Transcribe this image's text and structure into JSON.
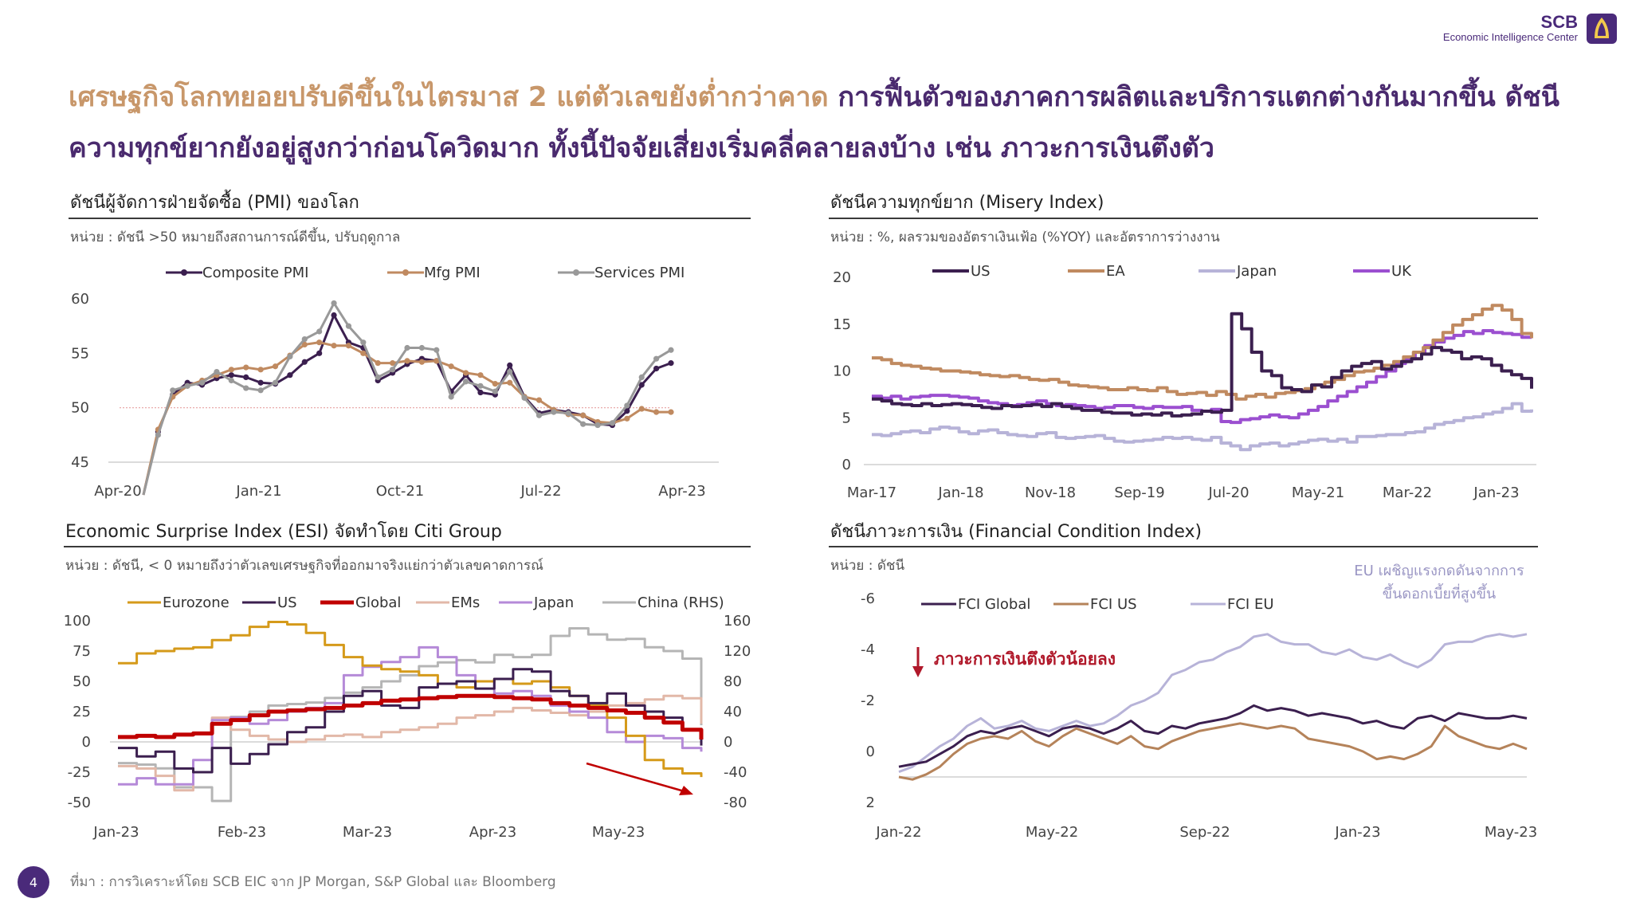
{
  "logo": {
    "brand": "SCB",
    "subtitle": "Economic Intelligence Center"
  },
  "headline": {
    "gold": "เศรษฐกิจโลกทยอยปรับดีขึ้นในไตรมาส 2 แต่ตัวเลขยังต่ำกว่าคาด",
    "purple": " การฟื้นตัวของภาคการผลิตและบริการแตกต่างกันมากขึ้น ดัชนีความทุกข์ยากยังอยู่สูงกว่าก่อนโควิดมาก ทั้งนี้ปัจจัยเสี่ยงเริ่มคลี่คลายลงบ้าง เช่น ภาวะการเงินตึงตัว"
  },
  "panels": {
    "pmi": {
      "title": "ดัชนีผู้จัดการฝ่ายจัดซื้อ (PMI) ของโลก",
      "unit": "หน่วย : ดัชนี >50 หมายถึงสถานการณ์ดีขึ้น, ปรับฤดูกาล"
    },
    "misery": {
      "title": "ดัชนีความทุกข์ยาก (Misery Index)",
      "unit": "หน่วย : %, ผลรวมของอัตราเงินเฟ้อ (%YOY) และอัตราการว่างงาน"
    },
    "esi": {
      "title": "Economic Surprise Index (ESI) จัดทำโดย Citi Group",
      "unit": "หน่วย : ดัชนี, < 0 หมายถึงว่าตัวเลขเศรษฐกิจที่ออกมาจริงแย่กว่าตัวเลขคาดการณ์"
    },
    "fci": {
      "title": "ดัชนีภาวะการเงิน (Financial Condition Index)",
      "unit": "หน่วย : ดัชนี"
    }
  },
  "footer": {
    "page": "4",
    "source": "ที่มา : การวิเคราะห์โดย SCB EIC จาก JP Morgan, S&P Global และ Bloomberg"
  },
  "colors": {
    "purple_dark": "#3b1f4f",
    "tan": "#c08a60",
    "gray": "#999999",
    "lavender": "#b7b3d8",
    "violet": "#9b4fd0",
    "gold": "#d59a1a",
    "red": "#c00000",
    "pink_beige": "#e2b8a8",
    "orchid": "#b58ad8",
    "light_gray": "#b5b5b5",
    "brown_tan": "#b5835a"
  },
  "chart_data": [
    {
      "id": "pmi",
      "type": "line",
      "title": "ดัชนีผู้จัดการฝ่ายจัดซื้อ (PMI) ของโลก",
      "ylim": [
        45,
        60
      ],
      "yticks": [
        "60",
        "55",
        "50",
        "45"
      ],
      "xticks": [
        "Apr-20",
        "Jan-21",
        "Oct-21",
        "Jul-22",
        "Apr-23"
      ],
      "reference_line": 50,
      "legend_position": "top",
      "series": [
        {
          "name": "Composite PMI",
          "color": "#3b1f4f",
          "marker": true,
          "values": [
            39.8,
            47.8,
            51.2,
            52.3,
            52.1,
            52.7,
            53.0,
            52.8,
            52.3,
            52.2,
            53.0,
            54.2,
            55.0,
            58.5,
            56.0,
            55.5,
            52.5,
            53.2,
            54.0,
            54.5,
            54.3,
            51.5,
            53.0,
            51.4,
            51.2,
            53.9,
            51.0,
            49.5,
            49.8,
            49.6,
            49.3,
            48.5,
            48.4,
            49.7,
            52.1,
            53.6,
            54.1
          ]
        },
        {
          "name": "Mfg PMI",
          "color": "#c08a60",
          "marker": true,
          "values": [
            41.5,
            48.0,
            51.0,
            52.0,
            52.5,
            53.0,
            53.5,
            53.7,
            53.5,
            53.8,
            54.8,
            55.8,
            56.0,
            55.7,
            55.7,
            55.0,
            54.1,
            54.1,
            54.3,
            54.2,
            54.3,
            53.8,
            53.2,
            53.0,
            52.2,
            52.3,
            51.0,
            50.7,
            49.8,
            49.4,
            49.3,
            48.7,
            48.6,
            49.0,
            49.9,
            49.6,
            49.6
          ]
        },
        {
          "name": "Services PMI",
          "color": "#999999",
          "marker": true,
          "values": [
            35.1,
            47.5,
            51.6,
            52.0,
            52.3,
            53.3,
            52.5,
            51.8,
            51.6,
            52.3,
            54.7,
            56.3,
            57.0,
            59.6,
            57.5,
            56.0,
            52.8,
            53.5,
            55.5,
            55.5,
            55.3,
            51.0,
            52.4,
            52.0,
            51.5,
            53.3,
            50.9,
            49.3,
            49.6,
            49.5,
            48.5,
            48.4,
            48.6,
            50.2,
            52.8,
            54.5,
            55.3
          ]
        }
      ]
    },
    {
      "id": "misery",
      "type": "line",
      "title": "ดัชนีความทุกข์ยาก (Misery Index)",
      "ylim": [
        0,
        20
      ],
      "yticks": [
        "20",
        "15",
        "10",
        "5",
        "0"
      ],
      "xticks": [
        "Mar-17",
        "Jan-18",
        "Nov-18",
        "Sep-19",
        "Jul-20",
        "May-21",
        "Mar-22",
        "Jan-23"
      ],
      "legend_position": "top",
      "series": [
        {
          "name": "US",
          "color": "#3b1f4f",
          "values": [
            7.0,
            6.8,
            6.5,
            6.4,
            6.3,
            6.5,
            6.3,
            6.4,
            6.5,
            6.4,
            6.3,
            6.1,
            6.0,
            6.3,
            6.2,
            6.3,
            6.4,
            6.2,
            6.5,
            6.2,
            6.0,
            5.8,
            5.8,
            5.6,
            5.5,
            5.5,
            5.3,
            5.4,
            5.3,
            5.5,
            5.2,
            5.3,
            5.4,
            5.7,
            5.6,
            5.8,
            16.1,
            14.5,
            12.0,
            10.0,
            9.5,
            8.2,
            8.0,
            7.8,
            8.5,
            8.3,
            9.3,
            10.0,
            10.5,
            10.8,
            11.0,
            10.2,
            10.5,
            11.0,
            11.3,
            11.8,
            12.5,
            12.2,
            12.0,
            11.3,
            11.5,
            11.3,
            10.6,
            10.0,
            9.6,
            9.2,
            8.1
          ]
        },
        {
          "name": "EA",
          "color": "#c08a60",
          "values": [
            11.4,
            11.2,
            10.8,
            10.6,
            10.5,
            10.3,
            10.2,
            10.0,
            10.0,
            9.9,
            9.8,
            9.6,
            9.5,
            9.4,
            9.5,
            9.3,
            9.1,
            9.0,
            9.1,
            8.8,
            8.5,
            8.4,
            8.3,
            8.2,
            8.0,
            8.0,
            8.2,
            8.0,
            7.9,
            8.2,
            7.8,
            7.5,
            7.6,
            7.7,
            7.4,
            7.8,
            7.5,
            7.0,
            7.3,
            7.5,
            7.2,
            7.6,
            7.7,
            7.9,
            8.1,
            8.5,
            8.8,
            9.1,
            9.5,
            9.9,
            10.0,
            10.3,
            10.6,
            11.0,
            11.5,
            12.0,
            12.5,
            13.3,
            14.1,
            14.9,
            15.5,
            16.0,
            16.6,
            17.0,
            16.5,
            15.5,
            14.0,
            13.5
          ]
        },
        {
          "name": "Japan",
          "color": "#b7b3d8",
          "values": [
            3.2,
            3.1,
            3.3,
            3.5,
            3.6,
            3.4,
            3.8,
            4.0,
            3.9,
            3.5,
            3.3,
            3.6,
            3.7,
            3.4,
            3.2,
            3.1,
            3.0,
            3.3,
            3.4,
            2.9,
            2.8,
            2.9,
            3.0,
            3.1,
            2.8,
            2.5,
            2.4,
            2.5,
            2.6,
            2.7,
            2.9,
            2.8,
            2.9,
            2.7,
            2.6,
            2.9,
            2.3,
            2.0,
            1.6,
            2.0,
            2.2,
            2.3,
            2.0,
            2.2,
            2.4,
            2.6,
            2.7,
            2.5,
            2.7,
            2.4,
            3.0,
            3.0,
            3.1,
            3.2,
            3.2,
            3.4,
            3.5,
            3.9,
            4.3,
            4.5,
            4.7,
            5.0,
            5.1,
            5.4,
            5.6,
            6.0,
            6.5,
            5.7,
            5.9
          ]
        },
        {
          "name": "UK",
          "color": "#9b4fd0",
          "values": [
            7.3,
            7.1,
            7.3,
            7.0,
            7.2,
            7.3,
            7.4,
            7.4,
            7.3,
            7.2,
            7.1,
            6.8,
            6.6,
            6.5,
            6.3,
            6.4,
            6.6,
            6.8,
            6.5,
            6.3,
            6.4,
            6.3,
            6.2,
            6.0,
            6.1,
            6.3,
            6.3,
            6.1,
            6.0,
            6.2,
            6.1,
            6.1,
            6.2,
            5.8,
            5.7,
            5.9,
            4.6,
            4.5,
            4.8,
            4.9,
            5.1,
            5.3,
            5.1,
            5.0,
            5.4,
            5.8,
            6.2,
            6.8,
            7.3,
            7.8,
            8.3,
            8.8,
            9.4,
            10.0,
            10.8,
            11.3,
            12.0,
            12.7,
            13.1,
            13.5,
            13.8,
            14.2,
            14.0,
            14.3,
            14.1,
            14.0,
            13.9,
            13.6,
            13.5
          ]
        }
      ]
    },
    {
      "id": "esi",
      "type": "line",
      "title": "Economic Surprise Index (ESI) จัดทำโดย Citi Group",
      "ylim": [
        -50,
        100
      ],
      "y2lim": [
        -80,
        160
      ],
      "yticks": [
        "100",
        "75",
        "50",
        "25",
        "0",
        "-25",
        "-50"
      ],
      "y2ticks": [
        "160",
        "120",
        "80",
        "40",
        "0",
        "-40",
        "-80"
      ],
      "xticks": [
        "Jan-23",
        "Feb-23",
        "Mar-23",
        "Apr-23",
        "May-23"
      ],
      "legend_position": "top",
      "series": [
        {
          "name": "Eurozone",
          "color": "#d59a1a",
          "values": [
            65,
            73,
            75,
            77,
            78,
            84,
            88,
            95,
            99,
            97,
            90,
            80,
            70,
            63,
            60,
            58,
            55,
            48,
            45,
            50,
            52,
            48,
            50,
            45,
            38,
            30,
            20,
            5,
            -15,
            -22,
            -26,
            -29
          ]
        },
        {
          "name": "US",
          "color": "#3b1f4f",
          "values": [
            -5,
            -12,
            -8,
            -22,
            -25,
            -5,
            -18,
            -10,
            -2,
            8,
            12,
            25,
            38,
            42,
            30,
            28,
            45,
            48,
            50,
            44,
            52,
            60,
            58,
            42,
            38,
            32,
            40,
            30,
            25,
            20,
            10,
            -3
          ]
        },
        {
          "name": "Global",
          "color": "#c00000",
          "values": [
            4,
            5,
            4,
            6,
            7,
            15,
            18,
            22,
            25,
            26,
            27,
            28,
            30,
            32,
            34,
            35,
            36,
            37,
            38,
            38,
            37,
            36,
            35,
            32,
            30,
            28,
            26,
            24,
            20,
            16,
            10,
            2
          ]
        },
        {
          "name": "EMs",
          "color": "#e2b8a8",
          "values": [
            -20,
            -22,
            -28,
            -40,
            -25,
            20,
            10,
            5,
            2,
            0,
            2,
            5,
            6,
            4,
            8,
            10,
            12,
            15,
            20,
            22,
            25,
            28,
            26,
            24,
            22,
            25,
            30,
            32,
            35,
            38,
            36,
            15
          ]
        },
        {
          "name": "Japan",
          "color": "#b58ad8",
          "values": [
            -35,
            -30,
            -35,
            -35,
            -15,
            18,
            20,
            15,
            18,
            25,
            28,
            32,
            55,
            62,
            66,
            70,
            78,
            70,
            55,
            50,
            40,
            42,
            38,
            30,
            25,
            20,
            8,
            0,
            5,
            3,
            -5,
            -8
          ]
        },
        {
          "name": "China (RHS)",
          "color": "#b5b5b5",
          "values": [
            -28,
            -30,
            -35,
            -60,
            -60,
            -78,
            33,
            40,
            48,
            50,
            52,
            58,
            65,
            72,
            80,
            88,
            100,
            105,
            108,
            105,
            115,
            112,
            115,
            140,
            150,
            142,
            135,
            136,
            125,
            120,
            110,
            22
          ]
        }
      ]
    },
    {
      "id": "fci",
      "type": "line",
      "title": "ดัชนีภาวะการเงิน (Financial Condition Index)",
      "ylim": [
        -6,
        2
      ],
      "y_reversed": true,
      "yticks": [
        "-6",
        "-4",
        "-2",
        "0",
        "2"
      ],
      "xticks": [
        "Jan-22",
        "May-22",
        "Sep-22",
        "Jan-23",
        "May-23"
      ],
      "legend_position": "top-left",
      "annotations": [
        "ภาวะการเงินตึงตัวน้อยลง",
        "EU เผชิญแรงกดดันจากการ",
        "ขึ้นดอกเบี้ยที่สูงขึ้น"
      ],
      "series": [
        {
          "name": "FCI Global",
          "color": "#3b1f4f",
          "values": [
            0.6,
            0.5,
            0.4,
            0.1,
            -0.2,
            -0.6,
            -0.8,
            -0.7,
            -0.9,
            -1.0,
            -0.8,
            -0.6,
            -0.9,
            -1.0,
            -0.9,
            -0.7,
            -0.9,
            -1.2,
            -0.8,
            -0.7,
            -1.0,
            -0.9,
            -1.1,
            -1.2,
            -1.3,
            -1.5,
            -1.8,
            -1.6,
            -1.7,
            -1.6,
            -1.4,
            -1.5,
            -1.4,
            -1.3,
            -1.1,
            -1.2,
            -1.0,
            -0.9,
            -1.3,
            -1.4,
            -1.2,
            -1.5,
            -1.4,
            -1.3,
            -1.3,
            -1.4,
            -1.3
          ]
        },
        {
          "name": "FCI US",
          "color": "#b5835a",
          "values": [
            1.0,
            1.1,
            0.9,
            0.6,
            0.1,
            -0.3,
            -0.5,
            -0.6,
            -0.5,
            -0.8,
            -0.4,
            -0.2,
            -0.6,
            -0.9,
            -0.7,
            -0.5,
            -0.3,
            -0.6,
            -0.2,
            -0.1,
            -0.4,
            -0.6,
            -0.8,
            -0.9,
            -1.0,
            -1.1,
            -1.0,
            -0.9,
            -1.0,
            -0.9,
            -0.5,
            -0.4,
            -0.3,
            -0.2,
            0.0,
            0.3,
            0.2,
            0.3,
            0.1,
            -0.2,
            -1.0,
            -0.6,
            -0.4,
            -0.2,
            -0.1,
            -0.3,
            -0.1
          ]
        },
        {
          "name": "FCI EU",
          "color": "#b7b3d8",
          "values": [
            0.8,
            0.6,
            0.2,
            -0.2,
            -0.5,
            -1.0,
            -1.3,
            -0.9,
            -1.0,
            -1.2,
            -0.9,
            -0.8,
            -1.0,
            -1.2,
            -1.0,
            -1.1,
            -1.4,
            -1.8,
            -2.0,
            -2.3,
            -3.0,
            -3.2,
            -3.5,
            -3.6,
            -3.9,
            -4.1,
            -4.5,
            -4.6,
            -4.3,
            -4.2,
            -4.2,
            -3.9,
            -3.8,
            -4.0,
            -3.7,
            -3.6,
            -3.8,
            -3.5,
            -3.3,
            -3.6,
            -4.2,
            -4.3,
            -4.3,
            -4.5,
            -4.6,
            -4.5,
            -4.6
          ]
        }
      ]
    }
  ]
}
